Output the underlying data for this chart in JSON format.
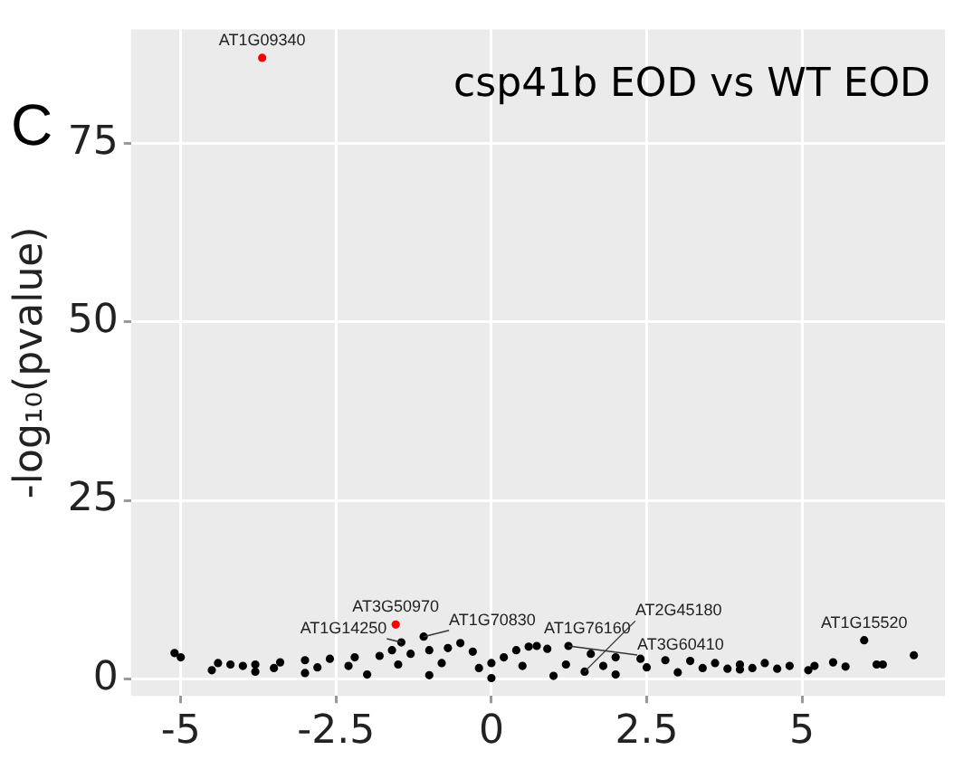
{
  "chart_data": {
    "type": "scatter",
    "title": "csp41b EOD vs WT EOD",
    "ylabel": "-log₁₀(pvalue)",
    "xlim": [
      -5.8,
      7.3
    ],
    "ylim": [
      -2.4,
      91
    ],
    "xticks": [
      {
        "value": -5,
        "label": "-5"
      },
      {
        "value": -2.5,
        "label": "-2.5"
      },
      0,
      2.5,
      5
    ],
    "yticks": [
      0,
      25,
      50,
      75
    ],
    "grid": true,
    "legend": false,
    "marker": "circle",
    "series": [
      {
        "color": "#ff0000",
        "x": [
          -3.69,
          -1.54
        ],
        "values": [
          87,
          7.6
        ]
      },
      {
        "color": "#000000",
        "x": [
          -5.1,
          -5.0,
          -4.5,
          -4.4,
          -4.2,
          -4.0,
          -3.8,
          -3.4,
          -3.0,
          -2.6,
          -2.2,
          -1.8,
          -1.6,
          -1.45,
          -1.3,
          -1.09,
          -1.0,
          -0.7,
          -0.5,
          -0.3,
          0,
          0.2,
          0.4,
          0.6,
          0.73,
          0.9,
          1.24,
          1.6,
          2.0,
          2.4,
          2.8,
          3.2,
          3.6,
          4.0,
          4.4,
          4.8,
          5.2,
          5.5,
          5.7,
          6.0,
          6.2,
          6.3,
          6.8,
          -3.8,
          -3.0,
          -2.0,
          -1.0,
          0,
          1.0,
          1.5,
          2.0,
          3.0,
          4.0,
          4.6,
          5.1,
          -3.5,
          -2.8,
          -2.3,
          -1.5,
          -0.8,
          -0.2,
          0.5,
          1.2,
          1.8,
          2.5,
          3.4,
          3.8,
          4.2
        ],
        "values": [
          3.6,
          3.0,
          1.2,
          2.2,
          2.0,
          1.8,
          2.0,
          2.3,
          2.6,
          2.8,
          3.0,
          3.2,
          4.0,
          5.1,
          3.5,
          5.9,
          4.0,
          4.3,
          5.0,
          3.8,
          2.2,
          3.0,
          4.0,
          4.5,
          4.6,
          4.2,
          4.6,
          3.5,
          3.0,
          2.8,
          2.6,
          2.5,
          2.2,
          2.0,
          2.2,
          1.8,
          1.8,
          2.3,
          1.7,
          5.4,
          2.0,
          2.0,
          3.3,
          1.0,
          0.8,
          0.6,
          0.5,
          0.1,
          0.4,
          1.0,
          0.6,
          0.9,
          1.3,
          1.4,
          1.2,
          1.5,
          1.6,
          1.8,
          2.0,
          2.2,
          1.5,
          1.8,
          2.0,
          1.8,
          1.6,
          1.5,
          1.4,
          1.5
        ]
      }
    ],
    "annotations": [
      "C",
      {
        "text": "AT1G09340",
        "x": -3.69,
        "y": 87
      },
      {
        "text": "AT3G50970",
        "x": -1.54,
        "y": 7.6
      },
      {
        "text": "AT1G14250",
        "x": -1.45,
        "y": 5.1
      },
      {
        "text": "AT1G70830",
        "x": -1.09,
        "y": 5.9
      },
      {
        "text": "AT1G76160",
        "x": 0.73,
        "y": 4.6
      },
      {
        "text": "AT3G60410",
        "x": 1.24,
        "y": 4.6
      },
      {
        "text": "AT2G45180",
        "x": 1.5,
        "y": 1.0
      },
      {
        "text": "AT1G15520",
        "x": 6.0,
        "y": 5.4
      }
    ]
  }
}
